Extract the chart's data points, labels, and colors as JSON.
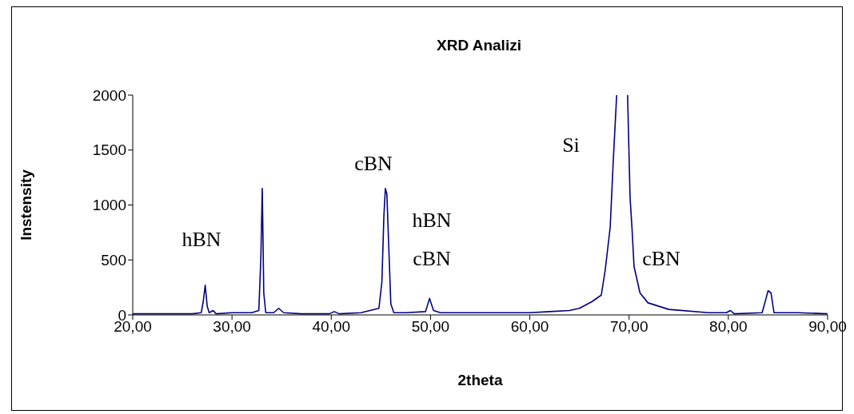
{
  "chart_data": {
    "type": "line",
    "title": "XRD Analizi",
    "xlabel": "2theta",
    "ylabel": "Instensity",
    "xlim": [
      20,
      90
    ],
    "xticks": [
      {
        "value": 20,
        "label": "20,00"
      },
      {
        "value": 30,
        "label": "30,00"
      },
      {
        "value": 40,
        "label": "40,00"
      },
      {
        "value": 50,
        "label": "50,00"
      },
      {
        "value": 60,
        "label": "60,00"
      },
      {
        "value": 70,
        "label": "70,00"
      },
      {
        "value": 80,
        "label": "80,00"
      },
      {
        "value": 90,
        "label": "90,00"
      }
    ],
    "ylim": [
      0,
      2000
    ],
    "yticks": [
      0,
      500,
      1000,
      1500,
      2000
    ],
    "grid": false,
    "legend": false,
    "marker": "none",
    "line_style": "solid",
    "annotations": [
      "hBN",
      "cBN",
      "hBN",
      "cBN",
      "Si",
      "cBN"
    ],
    "series": [
      {
        "color": "#000080",
        "x": [
          20,
          22,
          24,
          26,
          26.9,
          27.1,
          27.3,
          27.5,
          27.7,
          28.1,
          28.4,
          30,
          32,
          32.7,
          32.9,
          33.05,
          33.2,
          33.4,
          34.2,
          34.7,
          35.2,
          37,
          39.8,
          40.3,
          40.8,
          43,
          44.8,
          45.1,
          45.3,
          45.45,
          45.6,
          45.8,
          46.0,
          46.3,
          47.5,
          49.5,
          49.9,
          50.3,
          51,
          55,
          60,
          62,
          64,
          65,
          66.25,
          67.2,
          67.6,
          68.1,
          68.4,
          68.75,
          69.3,
          69.85,
          70.1,
          70.3,
          70.5,
          71.1,
          71.9,
          74,
          78,
          79.8,
          80.2,
          80.6,
          83.4,
          83.8,
          84.0,
          84.3,
          84.6,
          87,
          90
        ],
        "values": [
          10,
          10,
          10,
          10,
          20,
          120,
          270,
          80,
          20,
          40,
          10,
          20,
          20,
          40,
          500,
          1150,
          200,
          20,
          20,
          60,
          20,
          10,
          10,
          30,
          10,
          20,
          60,
          300,
          900,
          1150,
          1100,
          600,
          100,
          20,
          20,
          30,
          150,
          40,
          20,
          20,
          20,
          30,
          40,
          60,
          120,
          180,
          410,
          800,
          1390,
          2000,
          null,
          2000,
          1070,
          780,
          440,
          200,
          110,
          50,
          20,
          20,
          40,
          10,
          20,
          150,
          220,
          200,
          20,
          20,
          10
        ]
      }
    ]
  }
}
